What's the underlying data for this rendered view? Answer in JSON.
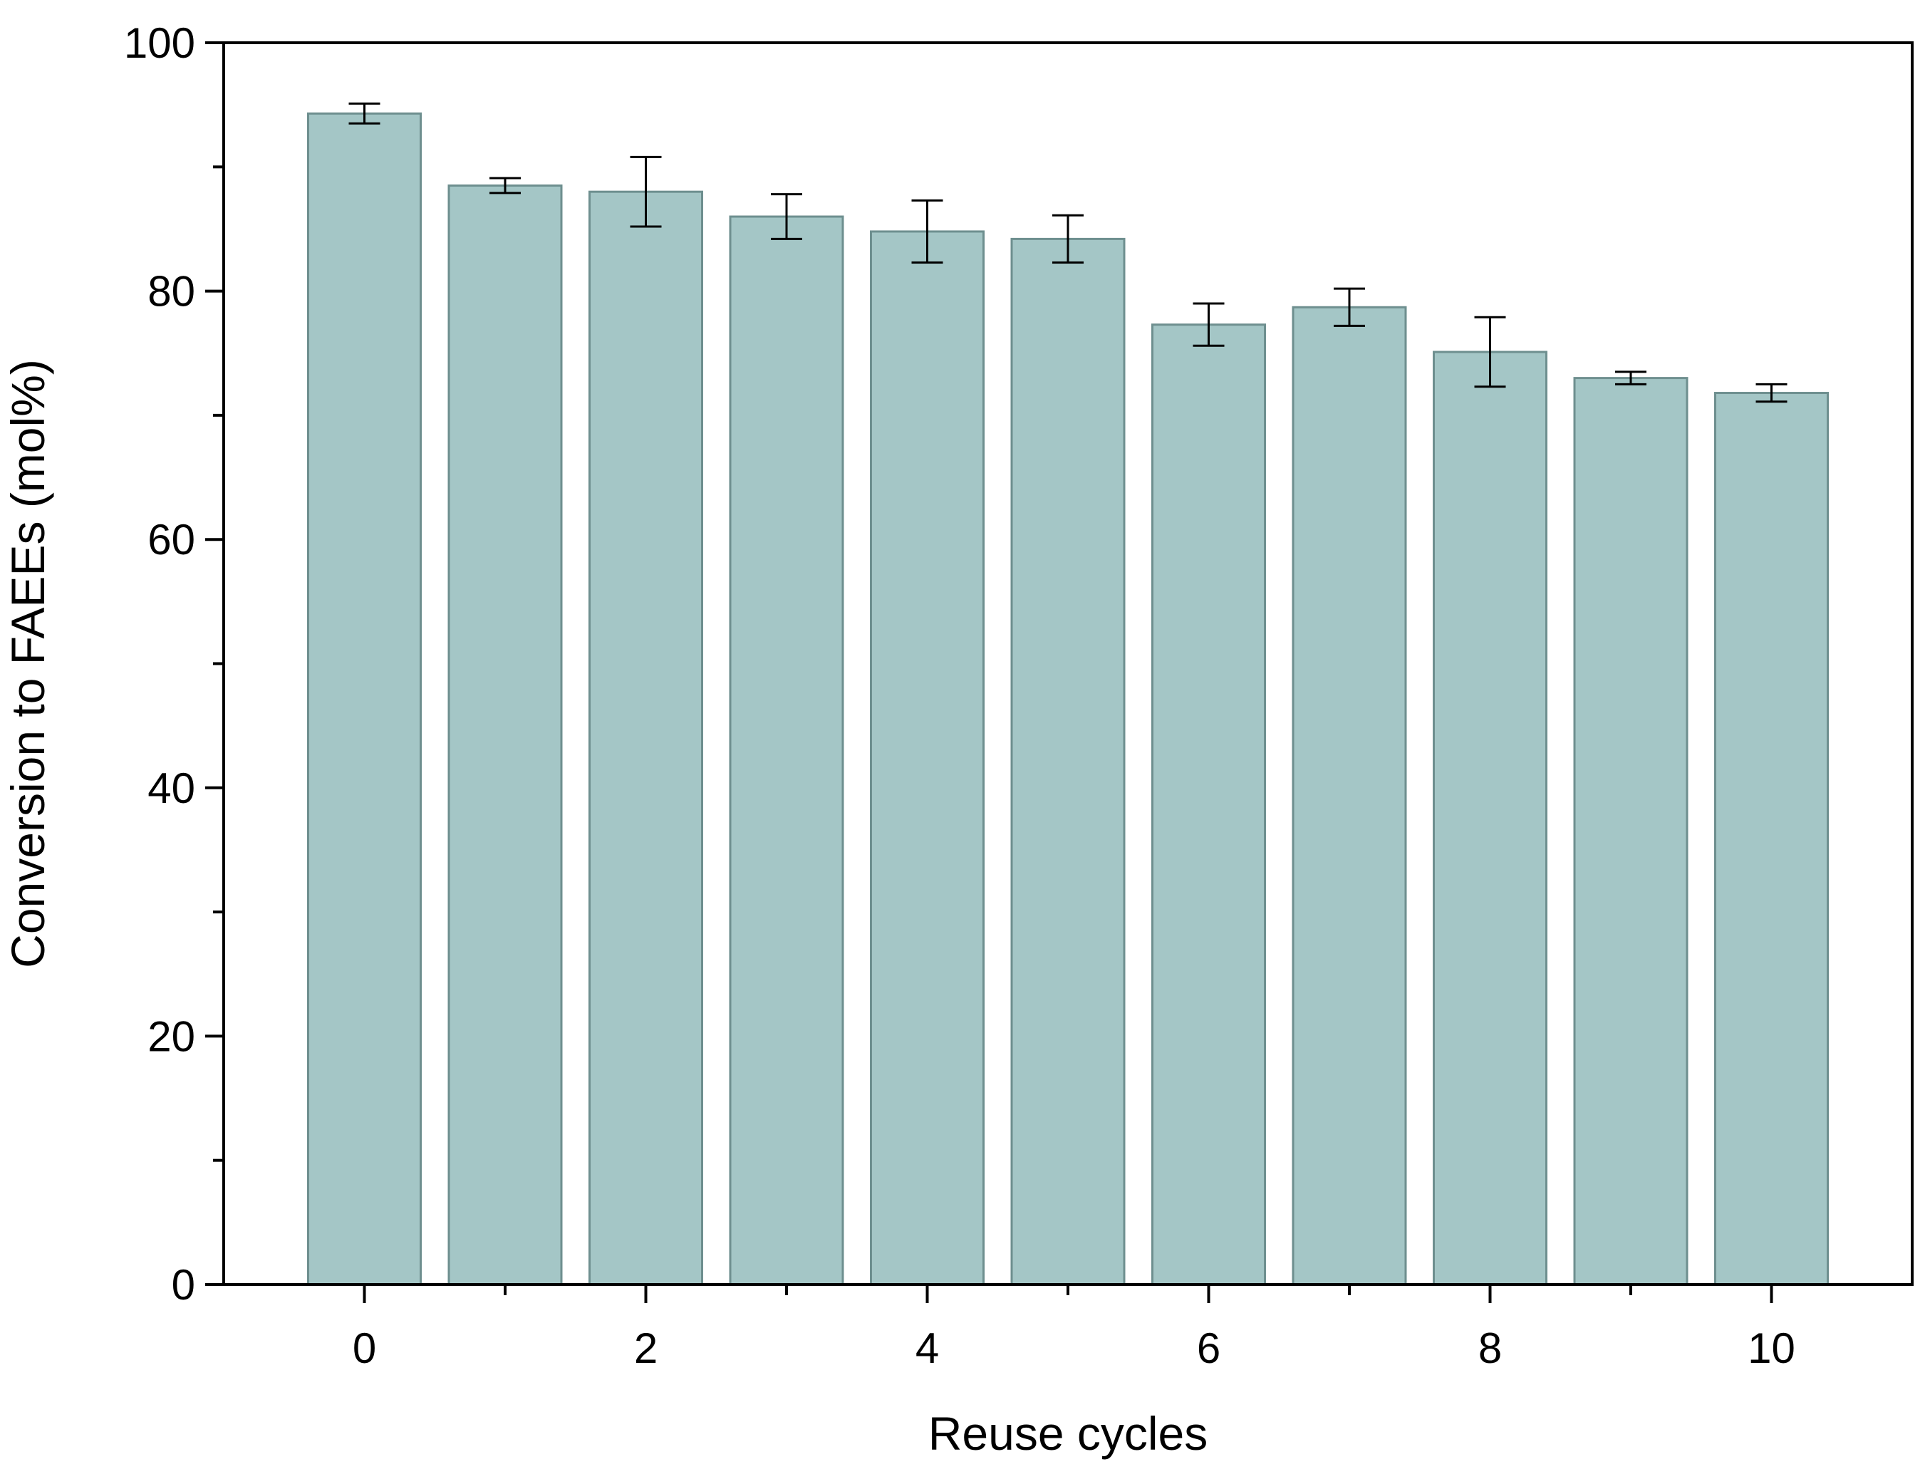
{
  "chart_data": {
    "type": "bar",
    "title": "",
    "xlabel": "Reuse cycles",
    "ylabel": "Conversion to FAEEs (mol%)",
    "x": [
      0,
      1,
      2,
      3,
      4,
      5,
      6,
      7,
      8,
      9,
      10
    ],
    "values": [
      94.3,
      88.5,
      88.0,
      86.0,
      84.8,
      84.2,
      77.3,
      78.7,
      75.1,
      73.0,
      71.8
    ],
    "errors": [
      0.8,
      0.6,
      2.8,
      1.8,
      2.5,
      1.9,
      1.7,
      1.5,
      2.8,
      0.5,
      0.7
    ],
    "xlim": [
      -1,
      11
    ],
    "ylim": [
      0,
      100
    ],
    "x_major_ticks": [
      0,
      2,
      4,
      6,
      8,
      10
    ],
    "x_tick_labels": [
      "0",
      "2",
      "4",
      "6",
      "8",
      "10"
    ],
    "x_minor_ticks": [
      1,
      3,
      5,
      7,
      9
    ],
    "y_major_ticks": [
      0,
      20,
      40,
      60,
      80,
      100
    ],
    "y_tick_labels": [
      "0",
      "20",
      "40",
      "60",
      "80",
      "100"
    ],
    "y_minor_ticks": [
      10,
      30,
      50,
      70,
      90
    ],
    "grid": false,
    "legend": "none",
    "colors": {
      "bar_fill": "#a4c6c6",
      "bar_stroke": "#6e8f8f",
      "error_bar": "#000000",
      "axis": "#000000"
    }
  }
}
